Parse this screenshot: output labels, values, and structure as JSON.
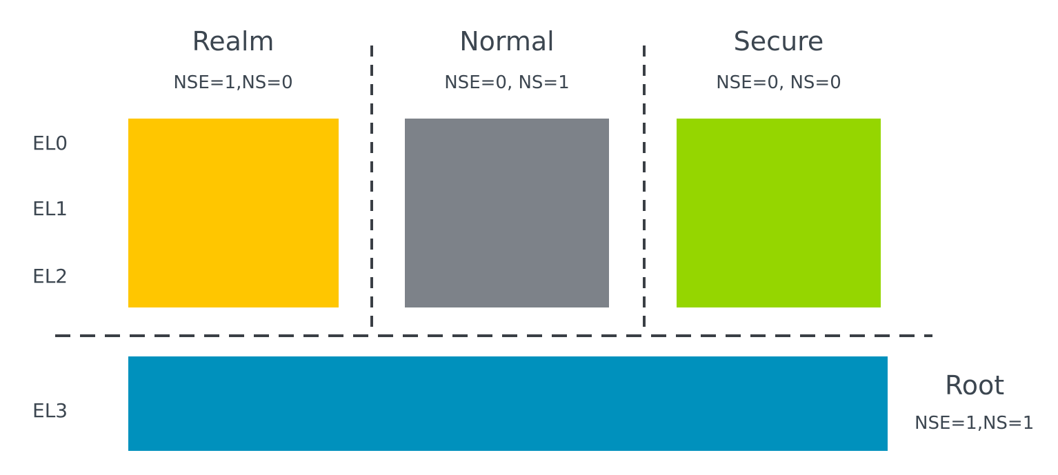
{
  "worlds": [
    {
      "title": "Realm",
      "sub": "NSE=1,NS=0",
      "color": "#ffc600"
    },
    {
      "title": "Normal",
      "sub": "NSE=0, NS=1",
      "color": "#7d8289"
    },
    {
      "title": "Secure",
      "sub": "NSE=0, NS=0",
      "color": "#95d600"
    }
  ],
  "root": {
    "title": "Root",
    "sub": "NSE=1,NS=1",
    "color": "#0091bd"
  },
  "levels": [
    "EL0",
    "EL1",
    "EL2",
    "EL3"
  ]
}
